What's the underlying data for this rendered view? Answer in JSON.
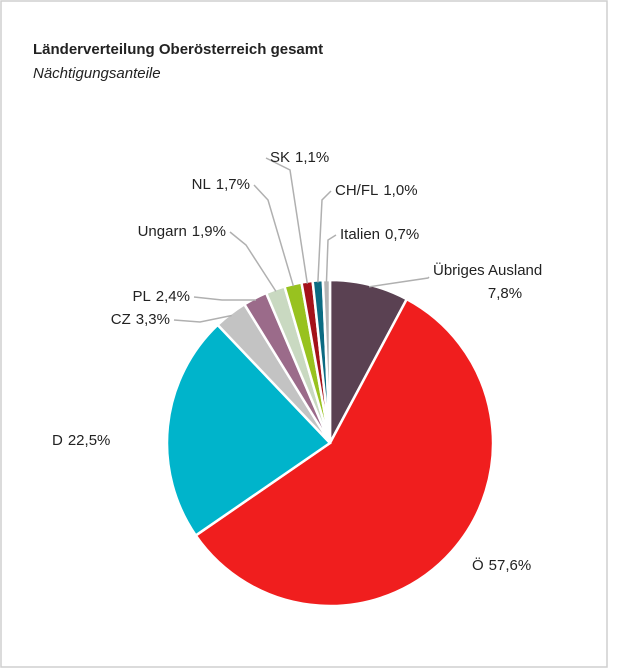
{
  "chart_data": {
    "type": "pie",
    "title": "Länderverteilung Oberösterreich gesamt",
    "subtitle": "Nächtigungsanteile",
    "categories": [
      "Übriges Ausland",
      "Ö",
      "D",
      "CZ",
      "PL",
      "Ungarn",
      "NL",
      "SK",
      "CH/FL",
      "Italien"
    ],
    "values": [
      7.8,
      57.6,
      22.5,
      3.3,
      2.4,
      1.9,
      1.7,
      1.1,
      1.0,
      0.7
    ],
    "value_labels": [
      "7,8%",
      "57,6%",
      "22,5%",
      "3,3%",
      "2,4%",
      "1,9%",
      "1,7%",
      "1,1%",
      "1,0%",
      "0,7%"
    ],
    "colors": [
      "#5a4152",
      "#f01e1e",
      "#00b4cb",
      "#c3c3c3",
      "#9b6b8a",
      "#c9d9c1",
      "#98c21f",
      "#a4121a",
      "#0b6b82",
      "#b4b4b4"
    ]
  }
}
